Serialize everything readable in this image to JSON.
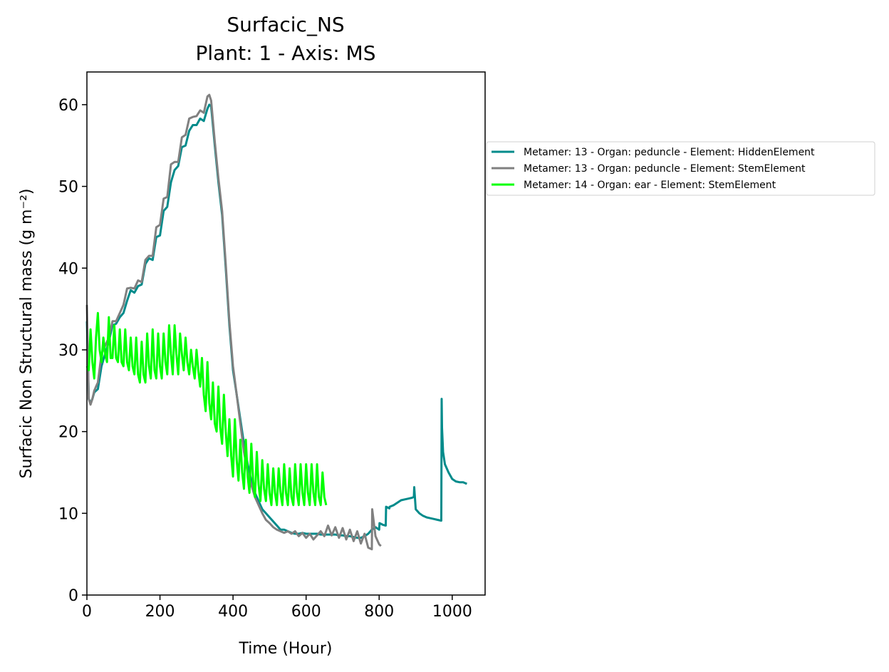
{
  "chart_data": {
    "type": "line",
    "title": "Surfacic_NS",
    "subtitle": "Plant: 1 - Axis: MS",
    "xlabel": "Time (Hour)",
    "ylabel": "Surfacic Non Structural mass (g m⁻²)",
    "xlim": [
      0,
      1090
    ],
    "ylim": [
      0,
      64
    ],
    "xticks": [
      0,
      200,
      400,
      600,
      800,
      1000
    ],
    "yticks": [
      0,
      10,
      20,
      30,
      40,
      50,
      60
    ],
    "xtick_labels": [
      "0",
      "200",
      "400",
      "600",
      "800",
      "1000"
    ],
    "ytick_labels": [
      "0",
      "10",
      "20",
      "30",
      "40",
      "50",
      "60"
    ],
    "grid": false,
    "legend_position": "outside right, upper",
    "series": [
      {
        "name": "Metamer: 13 - Organ: peduncle - Element: HiddenElement",
        "color": "#008b8b",
        "x": [
          0,
          5,
          10,
          15,
          20,
          25,
          30,
          40,
          50,
          60,
          70,
          80,
          90,
          100,
          110,
          120,
          130,
          140,
          150,
          160,
          170,
          180,
          190,
          200,
          210,
          220,
          230,
          240,
          250,
          260,
          270,
          280,
          290,
          300,
          310,
          320,
          330,
          335,
          340,
          350,
          360,
          370,
          380,
          390,
          400,
          410,
          420,
          430,
          440,
          450,
          460,
          470,
          480,
          490,
          500,
          510,
          520,
          530,
          540,
          550,
          560,
          570,
          580,
          590,
          600,
          610,
          620,
          630,
          640,
          650,
          660,
          670,
          680,
          690,
          700,
          710,
          720,
          730,
          740,
          750,
          760,
          770,
          780,
          790,
          800,
          801,
          810,
          818,
          819,
          828,
          829,
          840,
          850,
          860,
          870,
          880,
          890,
          895,
          896,
          900,
          910,
          920,
          930,
          940,
          950,
          960,
          970,
          971,
          972,
          975,
          980,
          990,
          1000,
          1010,
          1020,
          1030,
          1040
        ],
        "y": [
          33.5,
          24.0,
          23.5,
          24.0,
          24.8,
          25.0,
          25.2,
          28.0,
          29.5,
          31.0,
          33.0,
          33.2,
          34.0,
          34.5,
          36.0,
          37.3,
          37.0,
          37.8,
          38.0,
          40.5,
          41.2,
          41.0,
          43.8,
          44.0,
          47.0,
          47.5,
          50.5,
          52.0,
          52.5,
          54.8,
          55.0,
          56.8,
          57.5,
          57.5,
          58.3,
          58.0,
          59.5,
          60.0,
          59.8,
          55.0,
          50.5,
          46.5,
          40.0,
          33.0,
          27.5,
          24.5,
          21.5,
          18.5,
          16.0,
          14.0,
          12.5,
          11.5,
          10.5,
          10.0,
          9.5,
          9.0,
          8.5,
          8.0,
          8.0,
          7.8,
          7.6,
          7.5,
          7.5,
          7.6,
          7.5,
          7.5,
          7.5,
          7.5,
          7.4,
          7.4,
          7.4,
          7.4,
          7.4,
          7.3,
          7.3,
          7.2,
          7.2,
          7.1,
          7.0,
          7.0,
          7.2,
          7.5,
          8.0,
          8.3,
          8.0,
          8.8,
          8.6,
          8.5,
          10.8,
          10.6,
          10.8,
          11.0,
          11.3,
          11.6,
          11.7,
          11.8,
          11.9,
          12.0,
          13.2,
          10.5,
          10.0,
          9.7,
          9.5,
          9.4,
          9.3,
          9.2,
          9.1,
          24.0,
          20.5,
          17.5,
          16.0,
          15.0,
          14.2,
          13.9,
          13.8,
          13.8,
          13.6
        ]
      },
      {
        "name": "Metamer: 13 - Organ: peduncle - Element: StemElement",
        "color": "#808080",
        "x": [
          0,
          5,
          10,
          15,
          20,
          25,
          30,
          40,
          50,
          60,
          70,
          80,
          90,
          100,
          110,
          120,
          130,
          140,
          150,
          160,
          170,
          180,
          190,
          200,
          210,
          220,
          230,
          240,
          250,
          260,
          270,
          280,
          290,
          300,
          310,
          320,
          330,
          335,
          340,
          350,
          360,
          370,
          380,
          390,
          400,
          410,
          420,
          430,
          440,
          450,
          460,
          470,
          480,
          490,
          500,
          510,
          520,
          530,
          540,
          550,
          560,
          570,
          580,
          590,
          600,
          610,
          620,
          630,
          640,
          650,
          660,
          670,
          680,
          690,
          700,
          710,
          720,
          730,
          740,
          750,
          760,
          770,
          780,
          781,
          790,
          800,
          805
        ],
        "y": [
          35.5,
          24.0,
          23.3,
          24.0,
          25.0,
          25.5,
          26.0,
          29.5,
          30.5,
          31.5,
          33.5,
          33.5,
          34.5,
          35.5,
          37.5,
          37.6,
          37.5,
          38.5,
          38.3,
          41.0,
          41.5,
          41.5,
          45.0,
          45.3,
          48.5,
          48.7,
          52.7,
          53.0,
          53.0,
          56.0,
          56.3,
          58.3,
          58.5,
          58.6,
          59.3,
          59.0,
          61.0,
          61.2,
          60.5,
          55.5,
          51.0,
          47.0,
          40.5,
          33.5,
          28.0,
          24.5,
          21.0,
          17.5,
          15.0,
          13.5,
          12.0,
          11.0,
          10.0,
          9.2,
          8.8,
          8.3,
          8.0,
          7.8,
          7.6,
          7.8,
          7.5,
          7.8,
          7.2,
          7.6,
          7.0,
          7.5,
          6.8,
          7.3,
          7.8,
          7.2,
          8.5,
          7.3,
          8.3,
          7.0,
          8.2,
          6.8,
          8.0,
          6.6,
          7.8,
          6.3,
          7.5,
          5.8,
          5.6,
          10.5,
          7.2,
          6.2,
          6.0
        ]
      },
      {
        "name": "Metamer: 14 - Organ: ear - Element: StemElement",
        "color": "#00ff00",
        "x": [
          0,
          5,
          10,
          15,
          20,
          25,
          30,
          35,
          40,
          45,
          50,
          55,
          60,
          65,
          70,
          75,
          80,
          85,
          90,
          95,
          100,
          105,
          110,
          115,
          120,
          125,
          130,
          135,
          140,
          145,
          150,
          155,
          160,
          165,
          170,
          175,
          180,
          185,
          190,
          195,
          200,
          205,
          210,
          215,
          220,
          225,
          230,
          235,
          240,
          245,
          250,
          255,
          260,
          265,
          270,
          275,
          280,
          285,
          290,
          295,
          300,
          305,
          310,
          315,
          320,
          325,
          330,
          335,
          340,
          345,
          350,
          355,
          360,
          365,
          370,
          375,
          380,
          385,
          390,
          395,
          400,
          405,
          410,
          415,
          420,
          425,
          430,
          435,
          440,
          445,
          450,
          455,
          460,
          465,
          470,
          475,
          480,
          485,
          490,
          495,
          500,
          505,
          510,
          515,
          520,
          525,
          530,
          535,
          540,
          545,
          550,
          555,
          560,
          565,
          570,
          575,
          580,
          585,
          590,
          595,
          600,
          605,
          610,
          615,
          620,
          625,
          630,
          635,
          640,
          645,
          650,
          655
        ],
        "y": [
          28.0,
          27.5,
          32.5,
          28.5,
          26.5,
          31.5,
          34.5,
          30.0,
          28.5,
          31.5,
          29.5,
          28.5,
          34.0,
          29.0,
          29.0,
          33.0,
          29.0,
          28.5,
          32.5,
          28.5,
          28.0,
          32.5,
          28.5,
          27.5,
          31.5,
          28.0,
          27.0,
          31.5,
          27.0,
          26.0,
          31.0,
          27.0,
          26.0,
          32.0,
          28.0,
          26.5,
          32.5,
          27.5,
          26.5,
          32.0,
          28.0,
          26.5,
          32.0,
          28.5,
          27.0,
          33.0,
          29.5,
          27.0,
          33.0,
          29.5,
          27.0,
          32.0,
          29.5,
          27.5,
          31.5,
          28.5,
          27.0,
          30.0,
          28.0,
          26.5,
          30.0,
          27.5,
          25.5,
          29.0,
          24.5,
          22.5,
          28.5,
          23.5,
          21.5,
          26.0,
          21.0,
          20.0,
          25.5,
          20.5,
          18.5,
          24.5,
          20.0,
          17.0,
          21.5,
          17.0,
          14.5,
          21.5,
          16.5,
          14.0,
          19.0,
          15.0,
          13.0,
          19.0,
          14.5,
          12.5,
          18.5,
          14.0,
          12.0,
          17.5,
          13.5,
          11.5,
          16.5,
          13.0,
          11.5,
          16.0,
          12.5,
          11.0,
          15.5,
          12.5,
          11.0,
          15.5,
          12.5,
          11.0,
          16.0,
          12.5,
          11.0,
          15.5,
          12.0,
          11.0,
          16.0,
          12.5,
          11.0,
          16.0,
          12.5,
          11.0,
          16.0,
          12.5,
          11.0,
          16.0,
          12.5,
          11.0,
          16.0,
          12.0,
          11.0,
          15.0,
          12.0,
          11.0
        ]
      }
    ]
  }
}
